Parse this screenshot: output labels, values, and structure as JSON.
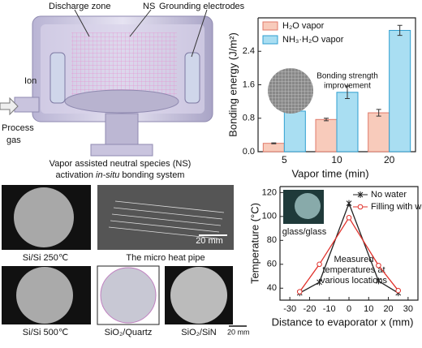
{
  "chart_data": [
    {
      "type": "bar",
      "categories": [
        "5",
        "10",
        "20"
      ],
      "series": [
        {
          "name": "H₂O vapor",
          "color": "#f8cbbb",
          "edge": "#e07a6a",
          "values": [
            0.2,
            0.77,
            0.93
          ],
          "errors": [
            0.01,
            0.03,
            0.08
          ]
        },
        {
          "name": "NH₃·H₂O vapor",
          "color": "#a9def2",
          "edge": "#2f9fd0",
          "values": [
            0.97,
            1.42,
            2.9
          ],
          "errors": [
            0.02,
            0.15,
            0.12
          ]
        }
      ],
      "ylim": [
        0,
        3.2
      ],
      "yticks": [
        {
          "value": 0,
          "label": "0.0"
        },
        0.8,
        1.6,
        2.4
      ],
      "ylabel": "Bonding energy (J/m²)",
      "xlabel": "Vapor time (min)",
      "annotation": [
        "Bonding strength",
        "improvement"
      ],
      "legend": "upper-left"
    },
    {
      "type": "line",
      "x": [
        -25,
        -15,
        0,
        15,
        25
      ],
      "series": [
        {
          "name": "No water",
          "color": "#222222",
          "marker": "star",
          "values": [
            36,
            45,
            111,
            46,
            36
          ]
        },
        {
          "name": "Filling with water",
          "color": "#e0302a",
          "marker": "circle",
          "values": [
            37,
            60,
            99,
            59,
            38
          ]
        }
      ],
      "xlim": [
        -35,
        35
      ],
      "xticks": [
        -30,
        -20,
        -10,
        0,
        10,
        20,
        30
      ],
      "ylim": [
        30,
        125
      ],
      "yticks": [
        40,
        60,
        80,
        100,
        120
      ],
      "ylabel": "Temperature (°C)",
      "xlabel": "Distance to evaporator x (mm)",
      "annotations": [
        "glass/glass",
        "Measured",
        "temperatures at",
        "various locations"
      ],
      "legend": "upper-right"
    }
  ],
  "diagram": {
    "labels": [
      "Discharge zone",
      "NS",
      "Grounding electrodes",
      "Ion"
    ],
    "inlet": [
      "Process",
      "gas"
    ],
    "caption": [
      "Vapor assisted neutral species (NS)",
      "activation ",
      "in-situ",
      " bonding system"
    ]
  },
  "photos": {
    "labels": [
      "Si/Si 250℃",
      "The micro heat pipe",
      "Si/Si 500℃",
      "SiO₂/Quartz",
      "SiO₂/SiN"
    ],
    "scale_bars": [
      "20 mm",
      "20 mm"
    ]
  }
}
